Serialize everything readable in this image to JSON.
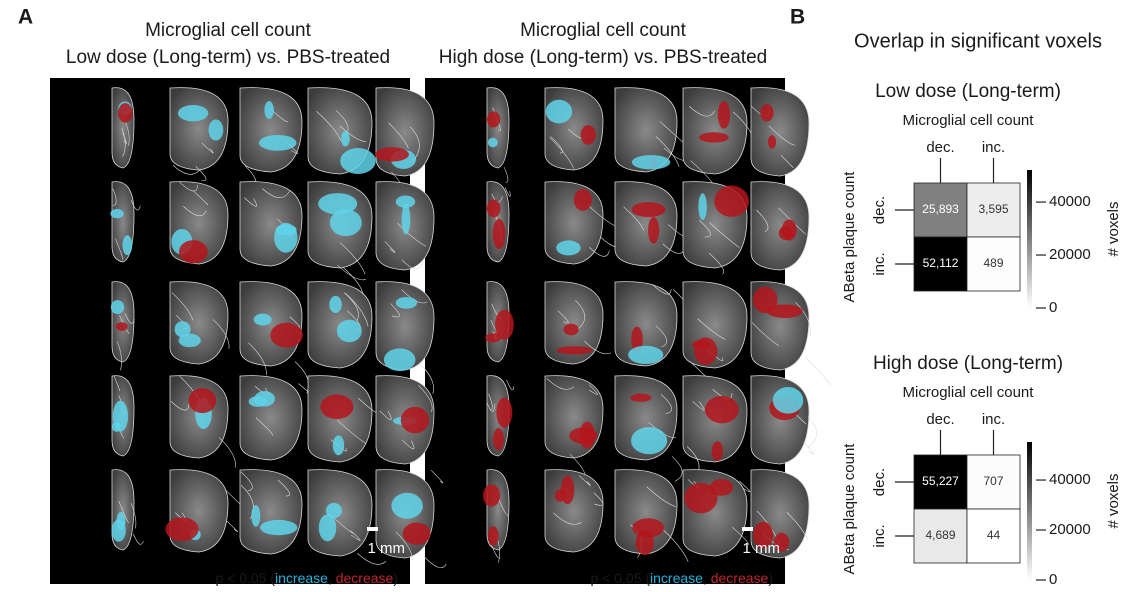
{
  "panel_a": {
    "label": "A",
    "titles": [
      [
        "Microglial cell count",
        "Low dose (Long-term) vs. PBS-treated"
      ],
      [
        "Microglial cell count",
        "High dose (Long-term) vs. PBS-treated"
      ]
    ],
    "scale_label": "1 mm",
    "legend": {
      "prefix": "p < 0.05 (",
      "increase": "increase",
      "separator": ", ",
      "decrease": "decrease",
      "suffix": ")"
    }
  },
  "panel_b": {
    "label": "B",
    "title": "Overlap in significant voxels"
  },
  "chart_data": [
    {
      "type": "heatmap",
      "title": "Low dose (Long-term)",
      "x_label": "Microglial cell count",
      "y_label": "ABeta plaque count",
      "x_categories": [
        "dec.",
        "inc."
      ],
      "y_categories": [
        "dec.",
        "inc."
      ],
      "values": [
        [
          25893,
          3595
        ],
        [
          52112,
          489
        ]
      ],
      "value_labels": [
        [
          "25,893",
          "3,595"
        ],
        [
          "52,112",
          "489"
        ]
      ],
      "colorbar_label": "# voxels",
      "clim": [
        0,
        52112
      ],
      "cticks": [
        0,
        20000,
        40000
      ]
    },
    {
      "type": "heatmap",
      "title": "High dose (Long-term)",
      "x_label": "Microglial cell count",
      "y_label": "ABeta plaque count",
      "x_categories": [
        "dec.",
        "inc."
      ],
      "y_categories": [
        "dec.",
        "inc."
      ],
      "values": [
        [
          55227,
          707
        ],
        [
          4689,
          44
        ]
      ],
      "value_labels": [
        [
          "55,227",
          "707"
        ],
        [
          "4,689",
          "44"
        ]
      ],
      "colorbar_label": "# voxels",
      "clim": [
        0,
        55227
      ],
      "cticks": [
        0,
        20000,
        40000
      ]
    }
  ]
}
